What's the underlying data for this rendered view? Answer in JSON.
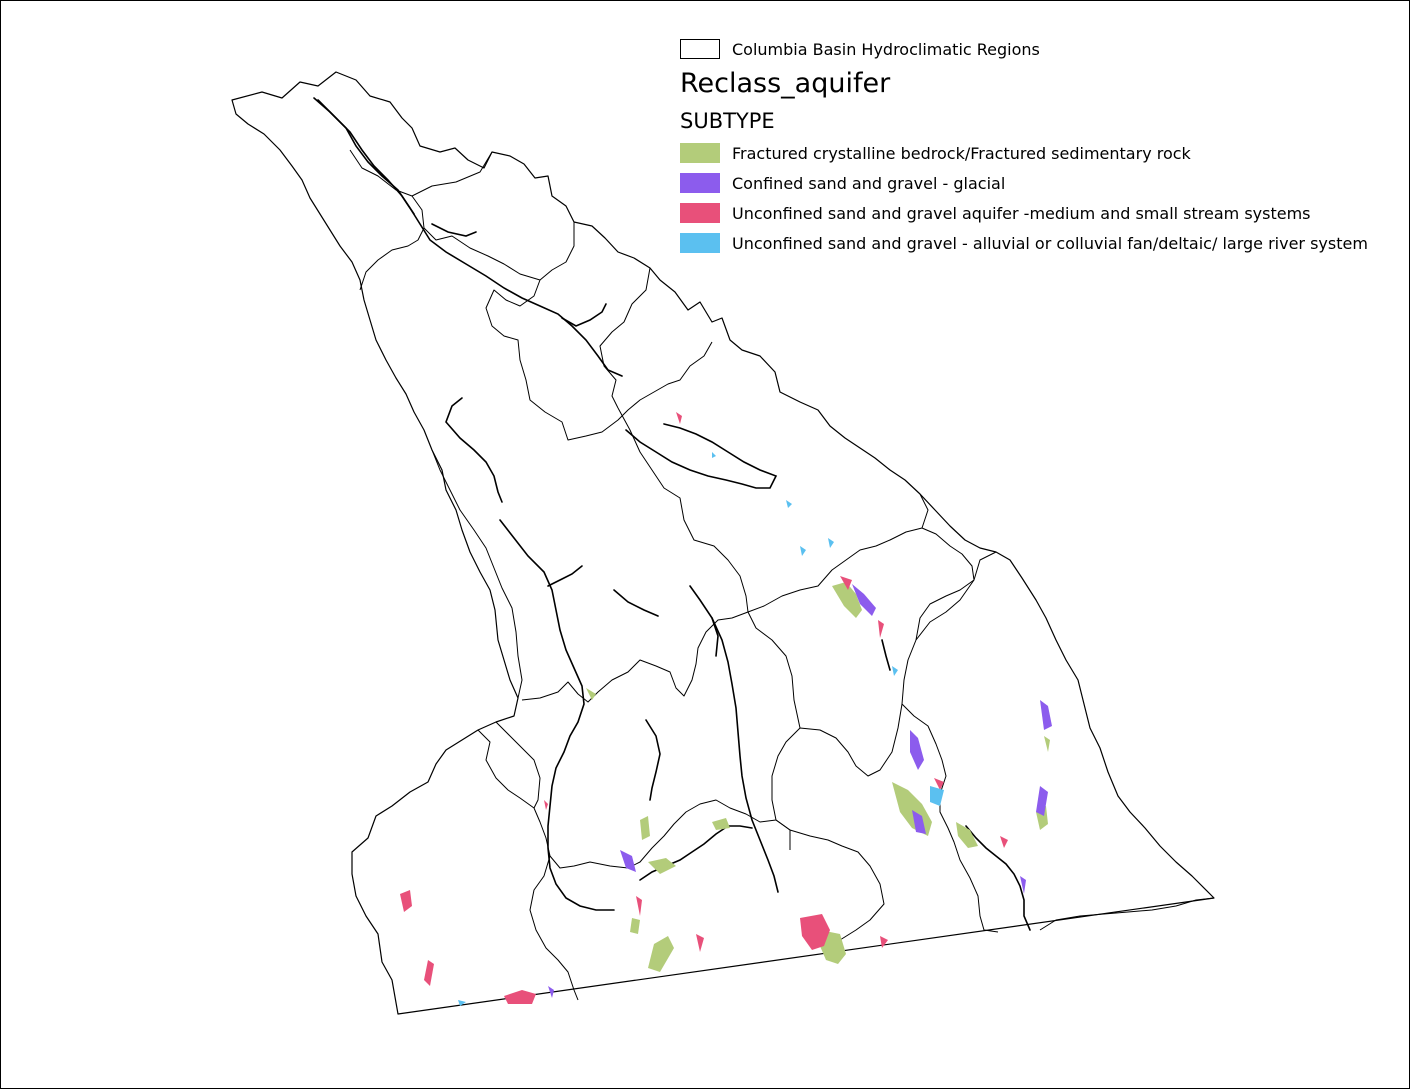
{
  "legend": {
    "boundary_label": "Columbia Basin Hydroclimatic Regions",
    "layer_title": "Reclass_aquifer",
    "field_name": "SUBTYPE",
    "classes": [
      {
        "label": "Fractured crystalline bedrock/Fractured sedimentary rock",
        "color": "#b3cc7a"
      },
      {
        "label": "Confined sand and gravel - glacial",
        "color": "#8c5ced"
      },
      {
        "label": "Unconfined sand and gravel aquifer -medium and small stream systems",
        "color": "#e8507a"
      },
      {
        "label": "Unconfined sand and gravel - alluvial or colluvial fan/deltaic/ large river system",
        "color": "#5bc0f0"
      }
    ]
  }
}
